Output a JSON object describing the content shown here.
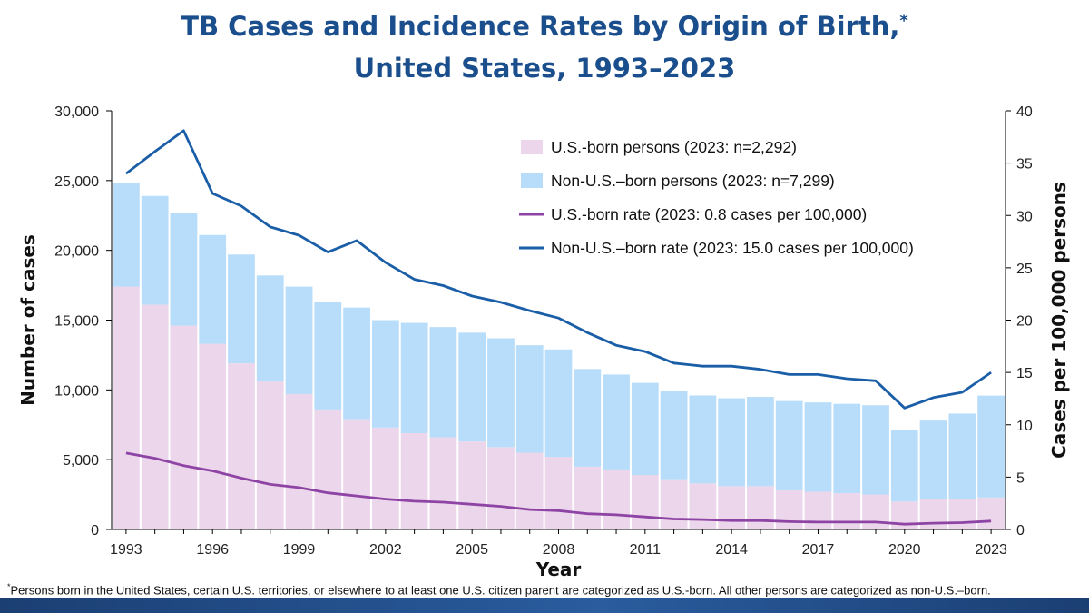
{
  "title": {
    "line1": "TB Cases and Incidence Rates by Origin of Birth,",
    "marker": "*",
    "line2": "United States, 1993–2023"
  },
  "footnote": {
    "marker": "*",
    "text": "Persons born in the United States, certain U.S. territories, or elsewhere to at least one U.S. citizen parent are categorized as U.S.-born. All other persons are categorized as non-U.S.–born."
  },
  "colors": {
    "us_born_bar": "#ecd6eb",
    "non_us_born_bar": "#b7ddfa",
    "us_born_line": "#8e44a4",
    "non_us_born_line": "#1b5ea8",
    "title": "#1a4e8c"
  },
  "chart_data": {
    "type": "bar",
    "stacked": true,
    "xlabel": "Year",
    "ylabel": "Number of cases",
    "y2label": "Cases per 100,000 persons",
    "ylim": [
      0,
      30000
    ],
    "y2lim": [
      0,
      40
    ],
    "yticks": [
      "0",
      "5,000",
      "10,000",
      "15,000",
      "20,000",
      "25,000",
      "30,000"
    ],
    "y2ticks": [
      "0",
      "5",
      "10",
      "15",
      "20",
      "25",
      "30",
      "35",
      "40"
    ],
    "xtick_labels": [
      "1993",
      "1996",
      "1999",
      "2002",
      "2005",
      "2008",
      "2011",
      "2014",
      "2017",
      "2020",
      "2023"
    ],
    "legend_position": "top-right",
    "categories": [
      1993,
      1994,
      1995,
      1996,
      1997,
      1998,
      1999,
      2000,
      2001,
      2002,
      2003,
      2004,
      2005,
      2006,
      2007,
      2008,
      2009,
      2010,
      2011,
      2012,
      2013,
      2014,
      2015,
      2016,
      2017,
      2018,
      2019,
      2020,
      2021,
      2022,
      2023
    ],
    "series": [
      {
        "name": "U.S.-born persons (2023: n=2,292)",
        "type": "bar",
        "axis": "left",
        "values": [
          17400,
          16100,
          14600,
          13300,
          11900,
          10600,
          9700,
          8600,
          7900,
          7300,
          6900,
          6600,
          6300,
          5900,
          5500,
          5200,
          4500,
          4300,
          3900,
          3600,
          3300,
          3100,
          3100,
          2800,
          2700,
          2600,
          2500,
          2000,
          2200,
          2200,
          2292
        ]
      },
      {
        "name": "Non-U.S.–born persons (2023: n=7,299)",
        "type": "bar",
        "axis": "left",
        "values": [
          7400,
          7800,
          8100,
          7800,
          7800,
          7600,
          7700,
          7700,
          8000,
          7700,
          7900,
          7900,
          7800,
          7800,
          7700,
          7700,
          7000,
          6800,
          6600,
          6300,
          6300,
          6300,
          6400,
          6400,
          6400,
          6400,
          6400,
          5100,
          5600,
          6100,
          7299
        ]
      },
      {
        "name": "U.S.-born rate (2023: 0.8 cases per 100,000)",
        "type": "line",
        "axis": "right",
        "values": [
          7.3,
          6.8,
          6.1,
          5.6,
          4.9,
          4.3,
          4.0,
          3.5,
          3.2,
          2.9,
          2.7,
          2.6,
          2.4,
          2.2,
          1.9,
          1.8,
          1.5,
          1.4,
          1.2,
          1.0,
          0.95,
          0.85,
          0.85,
          0.75,
          0.7,
          0.7,
          0.7,
          0.5,
          0.6,
          0.65,
          0.8
        ]
      },
      {
        "name": "Non-U.S.–born rate (2023: 15.0 cases per 100,000)",
        "type": "line",
        "axis": "right",
        "values": [
          34.0,
          36.1,
          38.1,
          32.1,
          30.9,
          28.9,
          28.1,
          26.5,
          27.6,
          25.5,
          23.9,
          23.3,
          22.3,
          21.7,
          20.9,
          20.2,
          18.8,
          17.6,
          17.0,
          15.9,
          15.6,
          15.6,
          15.3,
          14.8,
          14.8,
          14.4,
          14.2,
          11.6,
          12.6,
          13.1,
          15.0
        ]
      }
    ]
  }
}
